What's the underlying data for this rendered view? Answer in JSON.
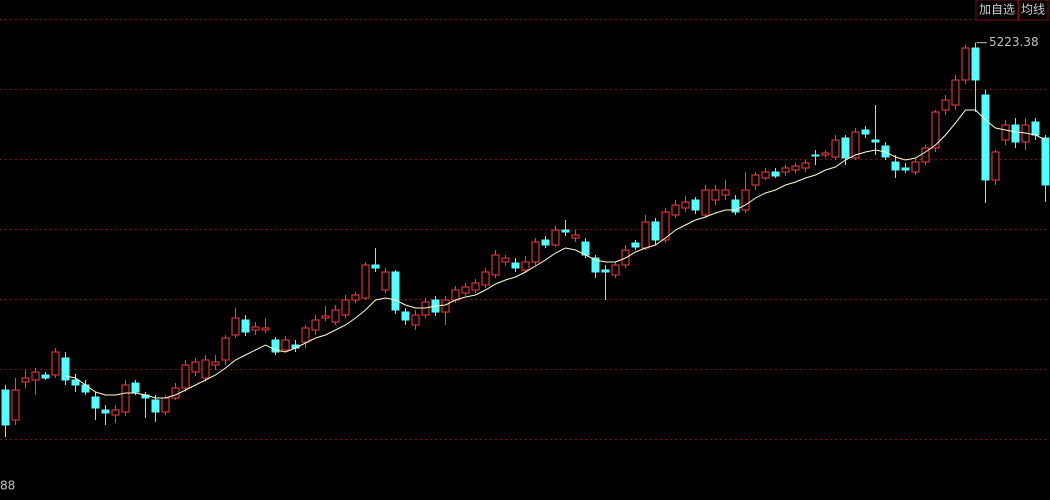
{
  "chart_data": {
    "type": "candlestick",
    "buttons": [
      "加自选",
      "均线"
    ],
    "bottom_label": "88",
    "up_color": "#ff3b3b",
    "down_color": "#54ffff",
    "ma_color": "#ffffcc",
    "grid_color": "#7a1010",
    "ylim": [
      650,
      5650
    ],
    "grid_lines": [
      1260,
      1960,
      2660,
      3360,
      4060,
      4760,
      5460
    ],
    "peak_index": 97,
    "open": [
      1750,
      1450,
      1830,
      1850,
      1900,
      1900,
      2070,
      1850,
      1800,
      1680,
      1550,
      1500,
      1530,
      1820,
      1700,
      1650,
      1530,
      1670,
      1770,
      1930,
      1870,
      2000,
      2050,
      2300,
      2450,
      2350,
      2350,
      2250,
      2150,
      2200,
      2230,
      2350,
      2470,
      2430,
      2500,
      2650,
      2670,
      3000,
      2750,
      2930,
      2530,
      2400,
      2500,
      2650,
      2530,
      2650,
      2720,
      2750,
      2800,
      2900,
      3030,
      3020,
      2950,
      3030,
      3250,
      3200,
      3350,
      3270,
      3230,
      3070,
      2950,
      2900,
      3000,
      3220,
      3170,
      3430,
      3250,
      3500,
      3570,
      3650,
      3500,
      3650,
      3700,
      3650,
      3550,
      3800,
      3870,
      3930,
      3930,
      3950,
      3970,
      4100,
      4100,
      4080,
      4270,
      4070,
      4350,
      4250,
      4190,
      4030,
      3970,
      3930,
      4030,
      4170,
      4550,
      4600,
      4850,
      5170,
      4700,
      3850,
      4250,
      4400,
      4230,
      4430,
      4270
    ],
    "high": [
      1800,
      1870,
      1950,
      1970,
      1930,
      2170,
      2130,
      1910,
      1850,
      1730,
      1600,
      1600,
      1850,
      1850,
      1730,
      1700,
      1700,
      1820,
      2050,
      2070,
      2100,
      2100,
      2300,
      2570,
      2500,
      2430,
      2470,
      2280,
      2290,
      2250,
      2400,
      2500,
      2590,
      2600,
      2700,
      2730,
      3030,
      3170,
      2970,
      2950,
      2570,
      2550,
      2670,
      2690,
      2690,
      2790,
      2820,
      2860,
      2970,
      3150,
      3100,
      3070,
      3090,
      3270,
      3290,
      3390,
      3450,
      3350,
      3270,
      3100,
      3000,
      3030,
      3200,
      3250,
      3500,
      3470,
      3570,
      3650,
      3690,
      3680,
      3800,
      3800,
      3850,
      3700,
      3930,
      3930,
      3970,
      3970,
      4000,
      4020,
      4050,
      4150,
      4150,
      4300,
      4300,
      4370,
      4390,
      4600,
      4230,
      4100,
      4020,
      4070,
      4200,
      4550,
      4700,
      4900,
      5200,
      5223.38,
      4750,
      4150,
      4450,
      4470,
      4470,
      4470,
      4300
    ],
    "low": [
      1280,
      1400,
      1770,
      1700,
      1850,
      1870,
      1800,
      1730,
      1700,
      1450,
      1400,
      1420,
      1490,
      1700,
      1470,
      1430,
      1500,
      1650,
      1730,
      1890,
      1830,
      1950,
      2000,
      2270,
      2290,
      2300,
      2320,
      2100,
      2130,
      2130,
      2170,
      2300,
      2440,
      2400,
      2470,
      2620,
      2650,
      2930,
      2720,
      2510,
      2400,
      2350,
      2470,
      2490,
      2400,
      2620,
      2690,
      2720,
      2770,
      2870,
      2990,
      2930,
      2920,
      3000,
      3170,
      3180,
      3290,
      3230,
      3070,
      2870,
      2650,
      2870,
      2970,
      3150,
      3150,
      3200,
      3220,
      3470,
      3530,
      3510,
      3470,
      3600,
      3650,
      3500,
      3520,
      3750,
      3850,
      3870,
      3890,
      3920,
      3930,
      4000,
      4070,
      4050,
      4000,
      4050,
      4270,
      4100,
      4050,
      3870,
      3920,
      3900,
      4000,
      4130,
      4500,
      4550,
      4810,
      4530,
      3620,
      3800,
      4200,
      4170,
      4150,
      4250,
      3630
    ],
    "close": [
      1400,
      1750,
      1870,
      1930,
      1870,
      2130,
      1850,
      1800,
      1730,
      1570,
      1520,
      1550,
      1800,
      1730,
      1670,
      1530,
      1670,
      1770,
      2000,
      2030,
      2050,
      2030,
      2270,
      2470,
      2330,
      2380,
      2370,
      2130,
      2250,
      2170,
      2370,
      2450,
      2490,
      2550,
      2650,
      2700,
      3000,
      2970,
      2930,
      2550,
      2450,
      2500,
      2630,
      2530,
      2650,
      2750,
      2780,
      2820,
      2930,
      3100,
      3070,
      2970,
      3030,
      3230,
      3200,
      3350,
      3330,
      3300,
      3100,
      2930,
      2930,
      3000,
      3150,
      3180,
      3430,
      3250,
      3530,
      3600,
      3630,
      3550,
      3750,
      3750,
      3750,
      3530,
      3750,
      3900,
      3930,
      3890,
      3970,
      3990,
      4020,
      4090,
      4120,
      4250,
      4070,
      4330,
      4310,
      4230,
      4080,
      3950,
      3950,
      4030,
      4170,
      4530,
      4650,
      4850,
      5170,
      4850,
      3850,
      4130,
      4400,
      4230,
      4400,
      4300,
      3800
    ],
    "ma": [
      null,
      null,
      null,
      null,
      null,
      null,
      1890,
      1870,
      1800,
      1730,
      1700,
      1700,
      1720,
      1720,
      1700,
      1670,
      1670,
      1700,
      1750,
      1800,
      1850,
      1900,
      1970,
      2050,
      2100,
      2150,
      2200,
      2150,
      2130,
      2170,
      2220,
      2270,
      2300,
      2350,
      2400,
      2470,
      2550,
      2650,
      2670,
      2650,
      2600,
      2570,
      2570,
      2590,
      2600,
      2650,
      2680,
      2700,
      2750,
      2810,
      2850,
      2880,
      2930,
      2990,
      3050,
      3120,
      3170,
      3150,
      3100,
      3050,
      3030,
      3030,
      3070,
      3130,
      3170,
      3200,
      3270,
      3350,
      3400,
      3450,
      3480,
      3520,
      3550,
      3550,
      3600,
      3670,
      3720,
      3750,
      3800,
      3830,
      3870,
      3900,
      3950,
      3980,
      4050,
      4100,
      4130,
      4150,
      4130,
      4080,
      4050,
      4070,
      4130,
      4200,
      4300,
      4420,
      4550,
      4550,
      4450,
      4370,
      4350,
      4330,
      4320,
      4300,
      4250
    ]
  }
}
